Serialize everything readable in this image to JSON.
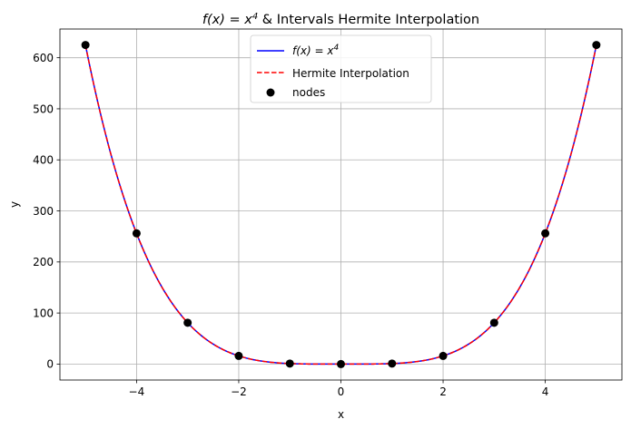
{
  "chart_data": {
    "type": "line",
    "title": {
      "formula": "f(x) = x",
      "exponent": "4",
      "suffix": " & Intervals Hermite Interpolation"
    },
    "xlabel": "x",
    "ylabel": "y",
    "xlim": [
      -5.5,
      5.5
    ],
    "ylim": [
      -31.25,
      656.25
    ],
    "xticks": [
      -4,
      -2,
      0,
      2,
      4
    ],
    "xtick_labels": [
      "−4",
      "−2",
      "0",
      "2",
      "4"
    ],
    "yticks": [
      0,
      100,
      200,
      300,
      400,
      500,
      600
    ],
    "ytick_labels": [
      "0",
      "100",
      "200",
      "300",
      "400",
      "500",
      "600"
    ],
    "grid": true,
    "legend_position": "top-center",
    "series": [
      {
        "name": "f(x) = x",
        "name_exponent": "4",
        "kind": "line",
        "style": "solid",
        "color": "#0000ff",
        "function": "x^4",
        "x_range": [
          -5,
          5
        ]
      },
      {
        "name": "Hermite Interpolation",
        "kind": "line",
        "style": "dashed",
        "color": "#ff0000",
        "function": "x^4",
        "x_range": [
          -5,
          5
        ]
      },
      {
        "name": "nodes",
        "kind": "scatter",
        "color": "#000000",
        "x": [
          -5,
          -4,
          -3,
          -2,
          -1,
          0,
          1,
          2,
          3,
          4,
          5
        ],
        "y": [
          625,
          256,
          81,
          16,
          1,
          0,
          1,
          16,
          81,
          256,
          625
        ]
      }
    ]
  }
}
